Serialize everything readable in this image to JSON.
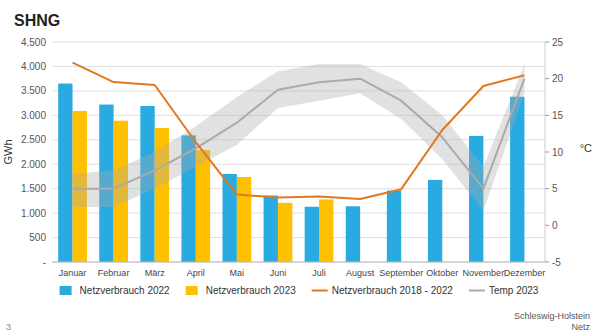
{
  "chart_data": {
    "type": "bar",
    "title": "SHNG",
    "categories": [
      "Januar",
      "Februar",
      "März",
      "April",
      "Mai",
      "Juni",
      "Juli",
      "August",
      "September",
      "Oktober",
      "November",
      "Dezember"
    ],
    "series": [
      {
        "name": "Netzverbrauch 2022",
        "type": "bar",
        "color": "#29abe2",
        "values": [
          3650,
          3220,
          3190,
          2590,
          1800,
          1360,
          1130,
          1140,
          1460,
          1680,
          2580,
          3380
        ]
      },
      {
        "name": "Netzverbrauch 2023",
        "type": "bar",
        "color": "#ffc000",
        "values": [
          3090,
          2890,
          2740,
          2290,
          1740,
          1210,
          1280,
          null,
          null,
          null,
          null,
          null
        ]
      },
      {
        "name": "Netzverbrauch 2018 - 2022",
        "type": "line",
        "color": "#e07820",
        "values": [
          4080,
          3680,
          3620,
          2450,
          1380,
          1320,
          1340,
          1290,
          1490,
          2700,
          3600,
          3820
        ]
      },
      {
        "name": "Temp 2023",
        "type": "line",
        "color": "#aaaaaa",
        "axis": "y2",
        "values": [
          5.0,
          5.0,
          7.5,
          10.5,
          14.0,
          18.5,
          19.5,
          20.0,
          17.0,
          12.0,
          5.0,
          20.0
        ],
        "upper": [
          7.0,
          7.5,
          10.0,
          13.5,
          17.5,
          21.0,
          22.0,
          22.0,
          19.5,
          15.0,
          8.0,
          22.0
        ],
        "lower": [
          2.5,
          2.5,
          5.0,
          8.0,
          11.0,
          16.0,
          17.0,
          18.0,
          14.5,
          9.0,
          2.0,
          18.0
        ]
      }
    ],
    "ylabel": "GWh",
    "y2label": "°C",
    "ylim": [
      0,
      4500
    ],
    "yticks": [
      {
        "value": 0,
        "label": "-"
      },
      500,
      {
        "value": 1000,
        "label": "1.000"
      },
      {
        "value": 1500,
        "label": "1.500"
      },
      {
        "value": 2000,
        "label": "2.000"
      },
      {
        "value": 2500,
        "label": "2.500"
      },
      {
        "value": 3000,
        "label": "3.000"
      },
      {
        "value": 3500,
        "label": "3.500"
      },
      {
        "value": 4000,
        "label": "4.000"
      },
      {
        "value": 4500,
        "label": "4.500"
      }
    ],
    "y2lim": [
      -5,
      25
    ],
    "y2ticks": [
      -5,
      0,
      5,
      10,
      15,
      20,
      25
    ],
    "grid": true,
    "legend": "bottom",
    "annotations": [
      "3",
      "Schleswig-Holstein\nNetz"
    ]
  }
}
